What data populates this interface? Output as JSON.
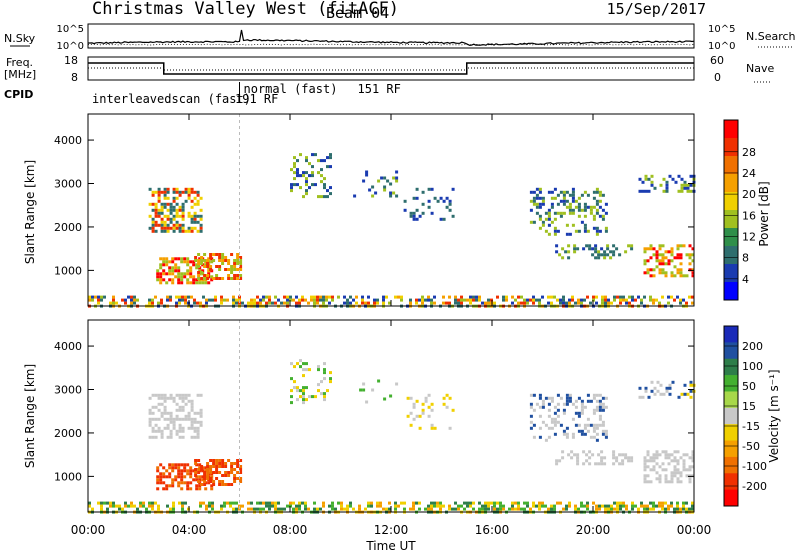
{
  "header": {
    "title": "Christmas Valley West (fitACF)",
    "beam": "Beam 04",
    "date": "15/Sep/2017"
  },
  "noise_panel": {
    "left_label": "N.Sky",
    "right_label": "N.Search",
    "left_ticks": [
      "10^5",
      "10^0"
    ],
    "right_ticks": [
      "10^5",
      "10^0"
    ]
  },
  "freq_panel": {
    "left_label_1": "Freq.",
    "left_label_2": "[MHz]",
    "left_ticks": [
      "18",
      "8"
    ],
    "right_label": "Nave",
    "right_ticks": [
      "60",
      "0"
    ],
    "cpid_label": "CPID",
    "cpid_segments": [
      {
        "start_hour": 0,
        "label": "interleavedscan (fast)",
        "rf": "191 RF"
      },
      {
        "start_hour": 6,
        "label": "normal (fast)",
        "rf": "151 RF"
      }
    ],
    "freq_step_hours": [
      0,
      3,
      15,
      24
    ],
    "freq_levels": [
      "high",
      "low",
      "high"
    ]
  },
  "chart_data": [
    {
      "type": "heatmap",
      "name": "power",
      "xlabel": "Time UT",
      "ylabel": "Slant Range [km]",
      "xlim": [
        0,
        24
      ],
      "ylim": [
        180,
        4600
      ],
      "x_ticks": [
        "00:00",
        "04:00",
        "08:00",
        "12:00",
        "16:00",
        "20:00",
        "00:00"
      ],
      "y_ticks": [
        1000,
        2000,
        3000,
        4000
      ],
      "colorbar": {
        "label": "Power [dB]",
        "ticks": [
          "4",
          "8",
          "12",
          "16",
          "20",
          "24",
          "28"
        ],
        "colors": [
          "#0000ff",
          "#1a3bb0",
          "#2e6e6e",
          "#2f8f4a",
          "#a0c020",
          "#f0d000",
          "#f5a000",
          "#f07000",
          "#f03000",
          "#ff0000"
        ]
      },
      "patches": [
        {
          "t0": 2.4,
          "t1": 4.5,
          "r0": 1900,
          "r1": 2900,
          "vals": [
            8,
            16,
            24
          ],
          "density": 0.55
        },
        {
          "t0": 2.7,
          "t1": 4.9,
          "r0": 700,
          "r1": 1300,
          "vals": [
            12,
            20,
            28
          ],
          "density": 0.6
        },
        {
          "t0": 4.2,
          "t1": 6.0,
          "r0": 800,
          "r1": 1400,
          "vals": [
            12,
            20,
            24
          ],
          "density": 0.6
        },
        {
          "t0": 8.0,
          "t1": 9.6,
          "r0": 2700,
          "r1": 3700,
          "vals": [
            4,
            8,
            12
          ],
          "density": 0.25
        },
        {
          "t0": 10.5,
          "t1": 12.2,
          "r0": 2700,
          "r1": 3300,
          "vals": [
            4,
            8,
            12
          ],
          "density": 0.2
        },
        {
          "t0": 12.5,
          "t1": 14.5,
          "r0": 2100,
          "r1": 2900,
          "vals": [
            4,
            8
          ],
          "density": 0.15
        },
        {
          "t0": 17.5,
          "t1": 20.5,
          "r0": 1800,
          "r1": 2900,
          "vals": [
            4,
            8,
            12
          ],
          "density": 0.35
        },
        {
          "t0": 18.5,
          "t1": 21.5,
          "r0": 1300,
          "r1": 1600,
          "vals": [
            4,
            8,
            12
          ],
          "density": 0.35
        },
        {
          "t0": 21.8,
          "t1": 24.0,
          "r0": 2800,
          "r1": 3200,
          "vals": [
            4,
            8,
            12
          ],
          "density": 0.35
        },
        {
          "t0": 22.0,
          "t1": 24.0,
          "r0": 900,
          "r1": 1600,
          "vals": [
            12,
            20,
            28
          ],
          "density": 0.45
        },
        {
          "t0": 0.0,
          "t1": 24.0,
          "r0": 180,
          "r1": 420,
          "vals": [
            4,
            8,
            12,
            16,
            20,
            24
          ],
          "density": 0.5
        }
      ]
    },
    {
      "type": "heatmap",
      "name": "velocity",
      "xlabel": "Time UT",
      "ylabel": "Slant Range [km]",
      "xlim": [
        0,
        24
      ],
      "ylim": [
        180,
        4600
      ],
      "x_ticks": [
        "00:00",
        "04:00",
        "08:00",
        "12:00",
        "16:00",
        "20:00",
        "00:00"
      ],
      "y_ticks": [
        1000,
        2000,
        3000,
        4000
      ],
      "colorbar": {
        "label": "Velocity [m s⁻¹]",
        "ticks": [
          "200",
          "100",
          "50",
          "15",
          "-15",
          "-50",
          "-100",
          "-200"
        ],
        "colors": [
          "#1a2ab8",
          "#2050a0",
          "#2e7e4a",
          "#44b030",
          "#a8d84a",
          "#c8c8c8",
          "#f0d000",
          "#f5a000",
          "#f07000",
          "#f03000",
          "#ff0000"
        ]
      },
      "patches": [
        {
          "t0": 2.4,
          "t1": 4.5,
          "r0": 1900,
          "r1": 2900,
          "vals": [
            0,
            -10
          ],
          "density": 0.5
        },
        {
          "t0": 2.7,
          "t1": 4.9,
          "r0": 700,
          "r1": 1300,
          "vals": [
            -150,
            -200,
            -100
          ],
          "density": 0.6
        },
        {
          "t0": 4.2,
          "t1": 6.0,
          "r0": 800,
          "r1": 1400,
          "vals": [
            -100,
            -150
          ],
          "density": 0.6
        },
        {
          "t0": 8.0,
          "t1": 9.6,
          "r0": 2700,
          "r1": 3700,
          "vals": [
            0,
            30,
            -30
          ],
          "density": 0.2
        },
        {
          "t0": 10.5,
          "t1": 12.2,
          "r0": 2700,
          "r1": 3300,
          "vals": [
            0,
            30
          ],
          "density": 0.15
        },
        {
          "t0": 12.5,
          "t1": 14.5,
          "r0": 2100,
          "r1": 2900,
          "vals": [
            0,
            -30
          ],
          "density": 0.12
        },
        {
          "t0": 17.5,
          "t1": 20.5,
          "r0": 1800,
          "r1": 2900,
          "vals": [
            0,
            10,
            150
          ],
          "density": 0.3
        },
        {
          "t0": 18.5,
          "t1": 21.5,
          "r0": 1300,
          "r1": 1600,
          "vals": [
            0,
            -10
          ],
          "density": 0.35
        },
        {
          "t0": 21.8,
          "t1": 24.0,
          "r0": 2800,
          "r1": 3200,
          "vals": [
            0,
            150,
            -30
          ],
          "density": 0.3
        },
        {
          "t0": 22.0,
          "t1": 24.0,
          "r0": 900,
          "r1": 1600,
          "vals": [
            0,
            -10
          ],
          "density": 0.45
        },
        {
          "t0": 0.0,
          "t1": 24.0,
          "r0": 180,
          "r1": 420,
          "vals": [
            -50,
            -30,
            30,
            60
          ],
          "density": 0.55
        }
      ]
    }
  ]
}
